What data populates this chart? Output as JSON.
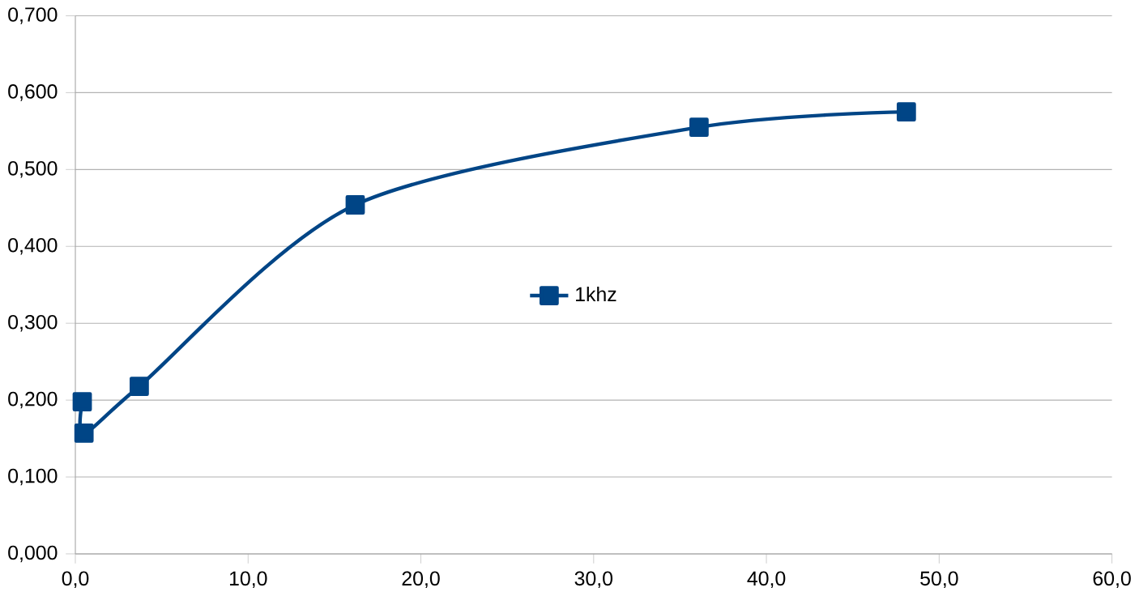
{
  "chart_data": {
    "type": "line",
    "series": [
      {
        "name": "1khz",
        "color": "#004586",
        "x": [
          0.4,
          0.5,
          3.7,
          16.2,
          36.1,
          48.1
        ],
        "values": [
          0.198,
          0.157,
          0.218,
          0.454,
          0.555,
          0.575
        ]
      }
    ],
    "xlim": [
      0,
      60
    ],
    "xticks": [
      {
        "value": 0,
        "label": "0,0"
      },
      {
        "value": 10,
        "label": "10,0"
      },
      {
        "value": 20,
        "label": "20,0"
      },
      {
        "value": 30,
        "label": "30,0"
      },
      {
        "value": 40,
        "label": "40,0"
      },
      {
        "value": 50,
        "label": "50,0"
      },
      {
        "value": 60,
        "label": "60,0"
      }
    ],
    "ylim": [
      0,
      0.7
    ],
    "yticks": [
      {
        "value": 0,
        "label": "0,000"
      },
      {
        "value": 0.1,
        "label": "0,100"
      },
      {
        "value": 0.2,
        "label": "0,200"
      },
      {
        "value": 0.3,
        "label": "0,300"
      },
      {
        "value": 0.4,
        "label": "0,400"
      },
      {
        "value": 0.5,
        "label": "0,500"
      },
      {
        "value": 0.6,
        "label": "0,600"
      },
      {
        "value": 0.7,
        "label": "0,700"
      }
    ],
    "grid": "y",
    "legend": "center",
    "marker": "square",
    "line_style": "solid"
  }
}
